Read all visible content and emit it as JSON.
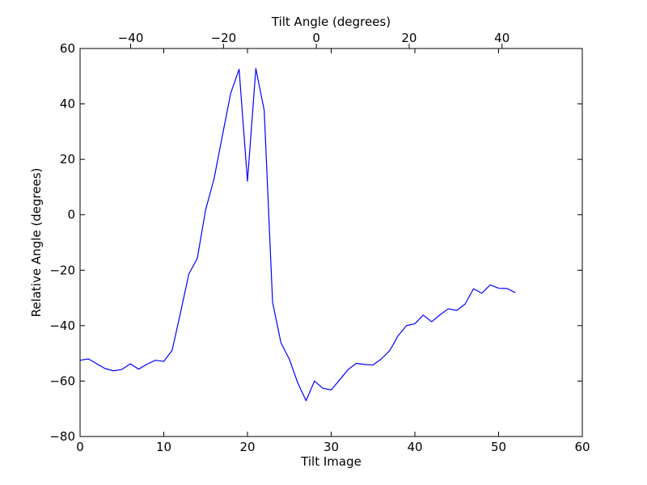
{
  "chart_data": {
    "type": "line",
    "title": "",
    "xlabel": "Tilt Image",
    "ylabel": "Relative Angle (degrees)",
    "x2label": "Tilt Angle (degrees)",
    "xlim": [
      0,
      60
    ],
    "ylim": [
      -80,
      60
    ],
    "x2lim": [
      -50.9,
      57.3
    ],
    "xticks": [
      0,
      10,
      20,
      30,
      40,
      50,
      60
    ],
    "yticks": [
      -80,
      -60,
      -40,
      -20,
      0,
      20,
      40,
      60
    ],
    "x2ticks": [
      -40,
      -20,
      0,
      20,
      40
    ],
    "xtick_labels": [
      "0",
      "10",
      "20",
      "30",
      "40",
      "50",
      "60"
    ],
    "ytick_labels": [
      "−80",
      "−60",
      "−40",
      "−20",
      "0",
      "20",
      "40",
      "60"
    ],
    "x2tick_labels": [
      "−40",
      "−20",
      "0",
      "20",
      "40"
    ],
    "grid": false,
    "series": [
      {
        "color": "#0000ff",
        "x": [
          0,
          1,
          2,
          3,
          4,
          5,
          6,
          7,
          8,
          9,
          10,
          11,
          12,
          13,
          14,
          15,
          16,
          17,
          18,
          19,
          20,
          21,
          22,
          23,
          24,
          25,
          26,
          27,
          28,
          29,
          30,
          31,
          32,
          33,
          34,
          35,
          36,
          37,
          38,
          39,
          40,
          41,
          42,
          43,
          44,
          45,
          46,
          47,
          48,
          49,
          50,
          51,
          52
        ],
        "y": [
          -52.5,
          -52,
          -53.8,
          -55.5,
          -56.3,
          -55.8,
          -53.8,
          -55.7,
          -53.9,
          -52.5,
          -52.9,
          -48.9,
          -35.3,
          -21.3,
          -15.8,
          1.8,
          12.9,
          28.5,
          43.9,
          52.5,
          12.1,
          52.8,
          37.6,
          -31.6,
          -46.2,
          -52.1,
          -60.6,
          -67.1,
          -60,
          -62.6,
          -63.2,
          -59.6,
          -55.9,
          -53.6,
          -54,
          -54.2,
          -52,
          -49,
          -43.6,
          -40,
          -39.3,
          -36.2,
          -38.6,
          -36.1,
          -33.9,
          -34.5,
          -32.2,
          -26.7,
          -28.3,
          -25.3,
          -26.5,
          -26.6,
          -28.1
        ]
      }
    ]
  }
}
